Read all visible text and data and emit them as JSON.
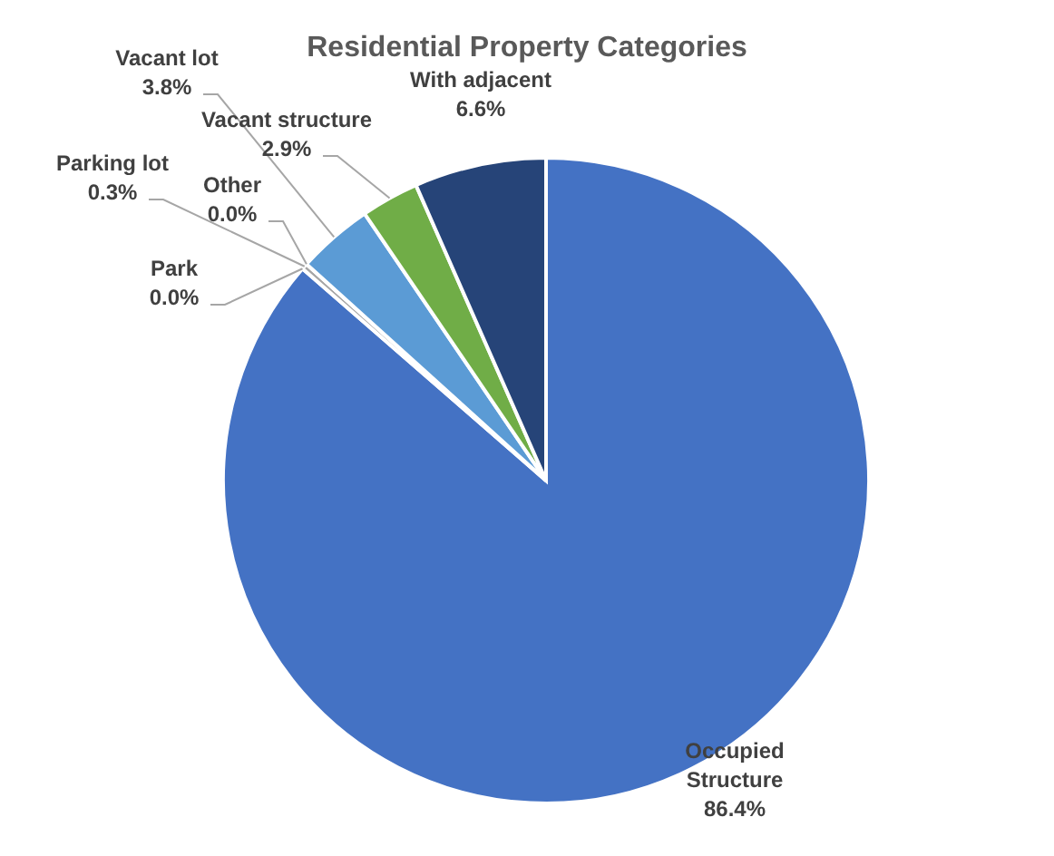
{
  "chart_data": {
    "type": "pie",
    "title": "Residential Property Categories",
    "categories": [
      "Occupied Structure",
      "Park",
      "Parking lot",
      "Other",
      "Vacant lot",
      "Vacant structure",
      "With adjacent"
    ],
    "values": [
      86.4,
      0.0,
      0.3,
      0.0,
      3.8,
      2.9,
      6.6
    ],
    "colors": [
      "#4472c4",
      "#ed7d31",
      "#a5a5a5",
      "#ffc000",
      "#5b9bd5",
      "#70ad47",
      "#264478"
    ],
    "value_labels": [
      "86.4%",
      "0.0%",
      "0.3%",
      "0.0%",
      "3.8%",
      "2.9%",
      "6.6%"
    ],
    "legend": false
  }
}
